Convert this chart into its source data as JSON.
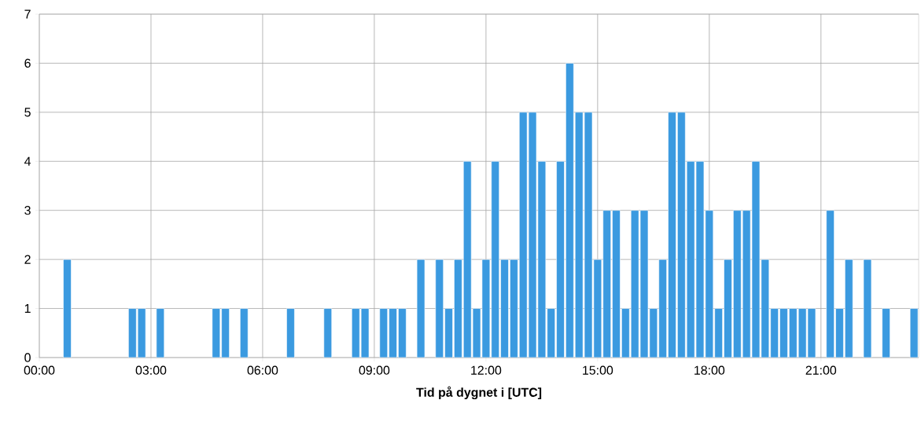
{
  "chart_data": {
    "type": "bar",
    "xlabel": "Tid på dygnet i [UTC]",
    "color": "#3b9ae0",
    "grid": true,
    "x": [
      0.75,
      2.5,
      2.75,
      3.25,
      4.75,
      5,
      5.5,
      6.75,
      7.75,
      8.5,
      8.75,
      9.25,
      9.5,
      9.75,
      10.25,
      10.75,
      11,
      11.25,
      11.5,
      11.75,
      12,
      12.25,
      12.5,
      12.75,
      13,
      13.25,
      13.5,
      13.75,
      14,
      14.25,
      14.5,
      14.75,
      15,
      15.25,
      15.5,
      15.75,
      16,
      16.25,
      16.5,
      16.75,
      17,
      17.25,
      17.5,
      17.75,
      18,
      18.25,
      18.5,
      18.75,
      19,
      19.25,
      19.5,
      19.75,
      20,
      20.25,
      20.5,
      20.75,
      21.25,
      21.5,
      21.75,
      22.25,
      22.75,
      23.5
    ],
    "values": [
      2,
      1,
      1,
      1,
      1,
      1,
      1,
      1,
      1,
      1,
      1,
      1,
      1,
      1,
      2,
      2,
      1,
      2,
      4,
      1,
      2,
      4,
      2,
      2,
      5,
      5,
      4,
      1,
      4,
      6,
      5,
      5,
      2,
      3,
      3,
      1,
      3,
      3,
      1,
      2,
      5,
      5,
      4,
      4,
      3,
      1,
      2,
      3,
      3,
      4,
      2,
      1,
      1,
      1,
      1,
      1,
      3,
      1,
      2,
      2,
      1,
      1
    ],
    "xlim": [
      0,
      23.625
    ],
    "xticks": [
      {
        "value": 0,
        "label": "00:00"
      },
      {
        "value": 3,
        "label": "03:00"
      },
      {
        "value": 6,
        "label": "06:00"
      },
      {
        "value": 9,
        "label": "09:00"
      },
      {
        "value": 12,
        "label": "12:00"
      },
      {
        "value": 15,
        "label": "15:00"
      },
      {
        "value": 18,
        "label": "18:00"
      },
      {
        "value": 21,
        "label": "21:00"
      }
    ],
    "ylim": [
      0,
      7
    ],
    "yticks": [
      0,
      1,
      2,
      3,
      4,
      5,
      6,
      7
    ]
  }
}
